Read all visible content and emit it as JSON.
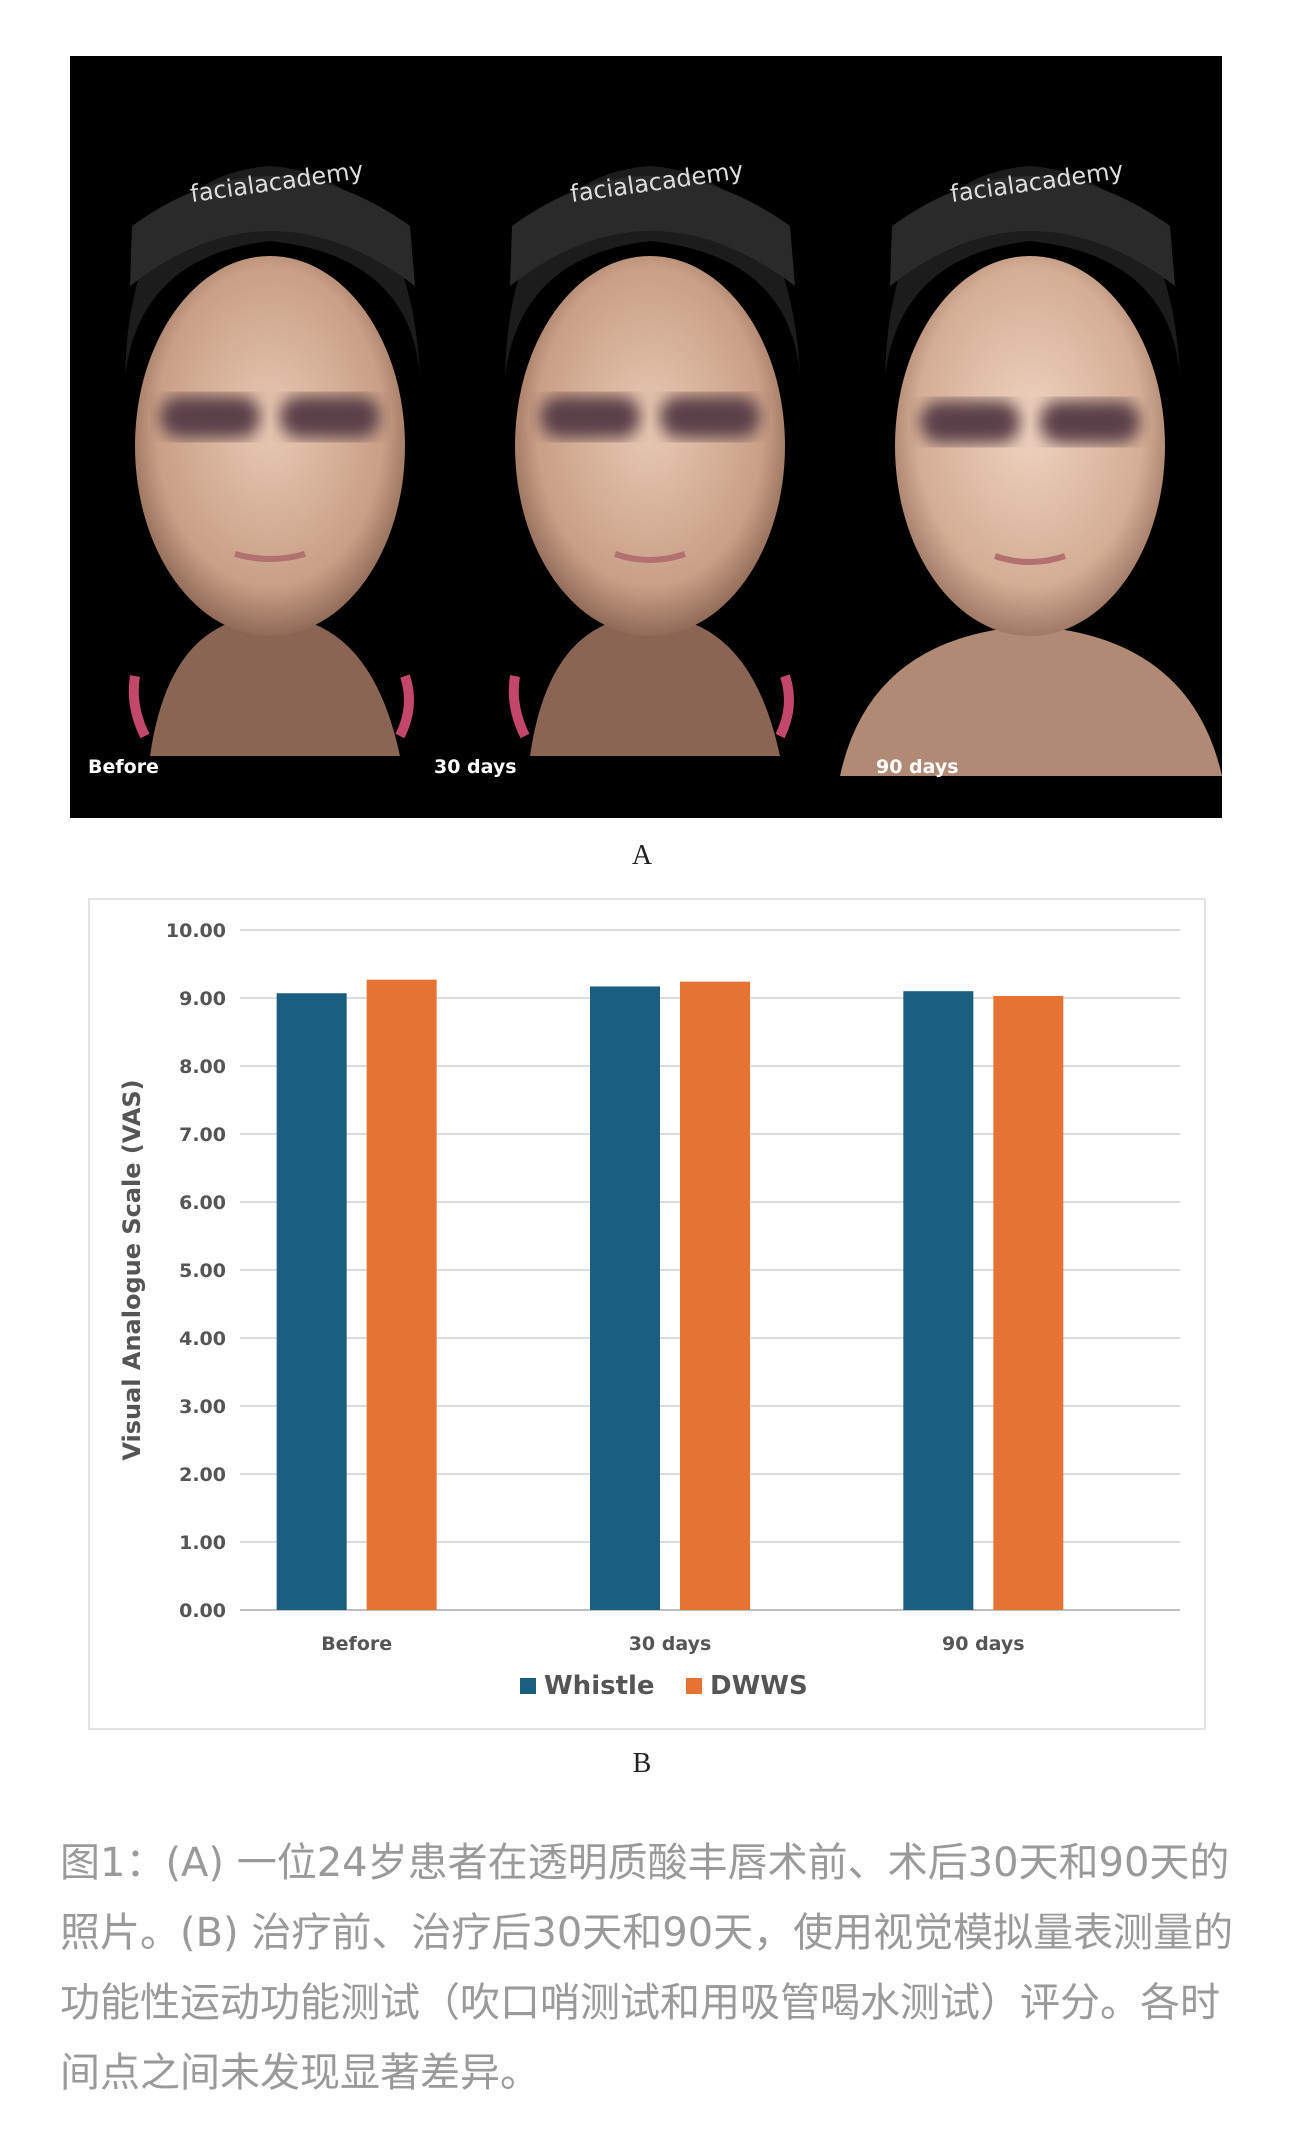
{
  "photos": {
    "brand": "facialacademy",
    "captions": [
      "Before",
      "30 days",
      "90 days"
    ]
  },
  "panel_labels": {
    "a": "A",
    "b": "B"
  },
  "chart_data": {
    "type": "bar",
    "categories": [
      "Before",
      "30 days",
      "90 days"
    ],
    "series": [
      {
        "name": "Whistle",
        "values": [
          9.07,
          9.17,
          9.1
        ],
        "color": "#1a5e80"
      },
      {
        "name": "DWWS",
        "values": [
          9.27,
          9.24,
          9.03
        ],
        "color": "#e57334"
      }
    ],
    "ylabel": "Visual Analogue Scale (VAS)",
    "ylim": [
      0,
      10
    ],
    "yticks": [
      "0.00",
      "1.00",
      "2.00",
      "3.00",
      "4.00",
      "5.00",
      "6.00",
      "7.00",
      "8.00",
      "9.00",
      "10.00"
    ],
    "grid": true,
    "legend": "bottom"
  },
  "caption": "图1：(A) 一位24岁患者在透明质酸丰唇术前、术后30天和90天的照片。(B) 治疗前、治疗后30天和90天，使用视觉模拟量表测量的功能性运动功能测试（吹口哨测试和用吸管喝水测试）评分。各时间点之间未发现显著差异。"
}
